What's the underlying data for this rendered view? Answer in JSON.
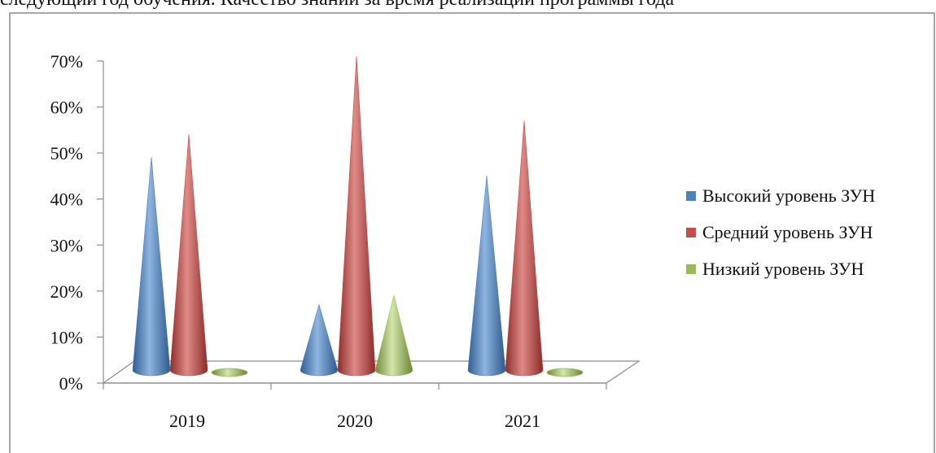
{
  "caption": "следующий год обучения. Качество знаний за время реализации программы года",
  "chart_data": {
    "type": "bar",
    "shape": "cone",
    "categories": [
      "2019",
      "2020",
      "2021"
    ],
    "series": [
      {
        "name": "Высокий уровень ЗУН",
        "values": [
          48,
          16,
          44
        ],
        "color": "#4F81BD"
      },
      {
        "name": "Средний уровень  ЗУН",
        "values": [
          53,
          70,
          56
        ],
        "color": "#C0504D"
      },
      {
        "name": "Низкий уровень ЗУН",
        "values": [
          0,
          18,
          0
        ],
        "color": "#9BBB59"
      }
    ],
    "y_ticks": [
      "0%",
      "10%",
      "20%",
      "30%",
      "40%",
      "50%",
      "60%",
      "70%"
    ],
    "ylim": [
      0,
      70
    ],
    "legend_position": "right",
    "grid": false
  }
}
